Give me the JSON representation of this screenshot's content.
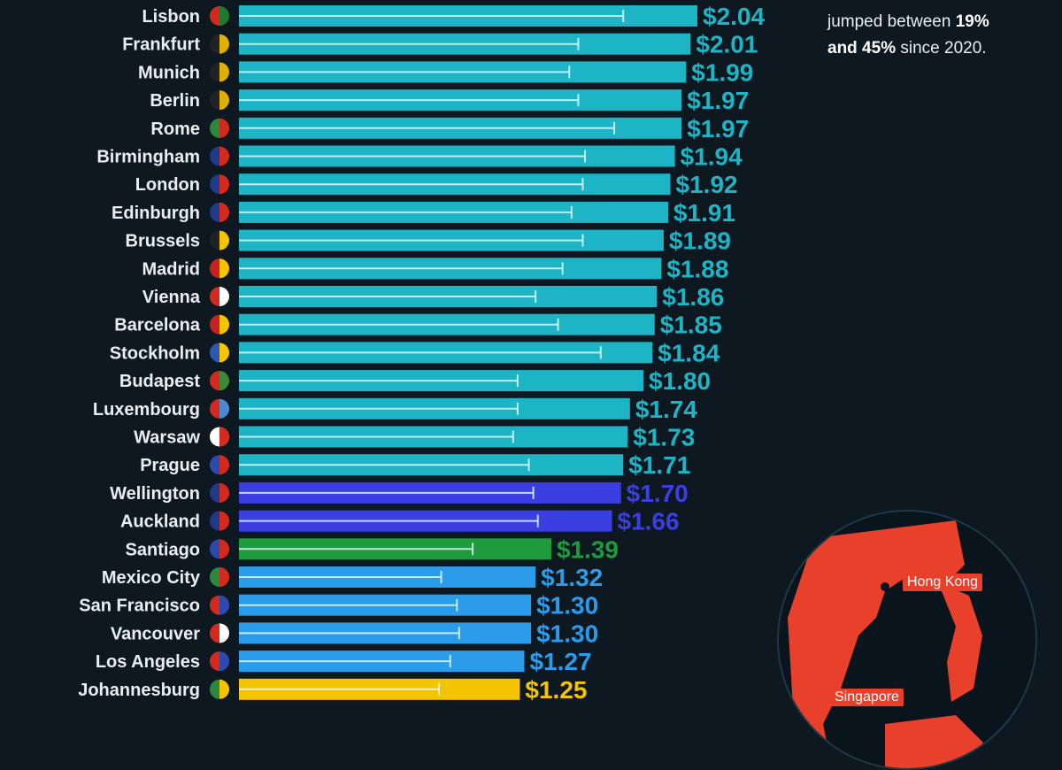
{
  "note": {
    "line1_pre": "jumped between ",
    "line1_bold": "19%",
    "line2_bold": "and 45%",
    "line2_post": " since 2020."
  },
  "map": {
    "labels": [
      "Hong Kong",
      "Singapore"
    ],
    "land_color": "#e8402a"
  },
  "chart_data": {
    "type": "bar",
    "orientation": "horizontal",
    "categories": [
      "Lisbon",
      "Frankfurt",
      "Munich",
      "Berlin",
      "Rome",
      "Birmingham",
      "London",
      "Edinburgh",
      "Brussels",
      "Madrid",
      "Vienna",
      "Barcelona",
      "Stockholm",
      "Budapest",
      "Luxembourg",
      "Warsaw",
      "Prague",
      "Wellington",
      "Auckland",
      "Santiago",
      "Mexico City",
      "San Francisco",
      "Vancouver",
      "Los Angeles",
      "Johannesburg"
    ],
    "values": [
      2.04,
      2.01,
      1.99,
      1.97,
      1.97,
      1.94,
      1.92,
      1.91,
      1.89,
      1.88,
      1.86,
      1.85,
      1.84,
      1.8,
      1.74,
      1.73,
      1.71,
      1.7,
      1.66,
      1.39,
      1.32,
      1.3,
      1.3,
      1.27,
      1.25
    ],
    "labels": [
      "$2.04",
      "$2.01",
      "$1.99",
      "$1.97",
      "$1.97",
      "$1.94",
      "$1.92",
      "$1.91",
      "$1.89",
      "$1.88",
      "$1.86",
      "$1.85",
      "$1.84",
      "$1.80",
      "$1.74",
      "$1.73",
      "$1.71",
      "$1.70",
      "$1.66",
      "$1.39",
      "$1.32",
      "$1.30",
      "$1.30",
      "$1.27",
      "$1.25"
    ],
    "marker_values": [
      1.71,
      1.51,
      1.47,
      1.51,
      1.67,
      1.54,
      1.53,
      1.48,
      1.53,
      1.44,
      1.32,
      1.42,
      1.61,
      1.24,
      1.24,
      1.22,
      1.29,
      1.31,
      1.33,
      1.04,
      0.9,
      0.97,
      0.98,
      0.94,
      0.89
    ],
    "region_colors": {
      "europe": "#1db5c6",
      "oceania": "#3b3fe2",
      "south_america": "#1e9b3c",
      "north_america": "#2b9ce9",
      "africa": "#f5c400"
    },
    "regions": [
      "europe",
      "europe",
      "europe",
      "europe",
      "europe",
      "europe",
      "europe",
      "europe",
      "europe",
      "europe",
      "europe",
      "europe",
      "europe",
      "europe",
      "europe",
      "europe",
      "europe",
      "oceania",
      "oceania",
      "south_america",
      "north_america",
      "north_america",
      "north_america",
      "north_america",
      "africa"
    ],
    "flags": [
      [
        "#d42a1e",
        "#1e7a2e"
      ],
      [
        "#222",
        "#e0b000"
      ],
      [
        "#222",
        "#e0b000"
      ],
      [
        "#222",
        "#e0b000"
      ],
      [
        "#2a8a3a",
        "#d42a1e"
      ],
      [
        "#1e3a8a",
        "#d42a1e"
      ],
      [
        "#1e3a8a",
        "#d42a1e"
      ],
      [
        "#1e3a8a",
        "#d42a1e"
      ],
      [
        "#222",
        "#f5c400"
      ],
      [
        "#c8201e",
        "#f5c400"
      ],
      [
        "#d42a1e",
        "#fff"
      ],
      [
        "#c8201e",
        "#f5c400"
      ],
      [
        "#2a5ab0",
        "#f5c400"
      ],
      [
        "#d42a1e",
        "#3a8a3a"
      ],
      [
        "#d42a1e",
        "#4a8ad0"
      ],
      [
        "#fff",
        "#d42a1e"
      ],
      [
        "#2a4ab0",
        "#d42a1e"
      ],
      [
        "#1e3a8a",
        "#d42a1e"
      ],
      [
        "#1e3a8a",
        "#d42a1e"
      ],
      [
        "#2a4ab0",
        "#d42a1e"
      ],
      [
        "#2a8a3a",
        "#d42a1e"
      ],
      [
        "#d42a1e",
        "#2a4ab0"
      ],
      [
        "#d42a1e",
        "#fff"
      ],
      [
        "#d42a1e",
        "#2a4ab0"
      ],
      [
        "#2a8a3a",
        "#f5c400"
      ]
    ],
    "xlim": [
      0,
      2.04
    ]
  }
}
